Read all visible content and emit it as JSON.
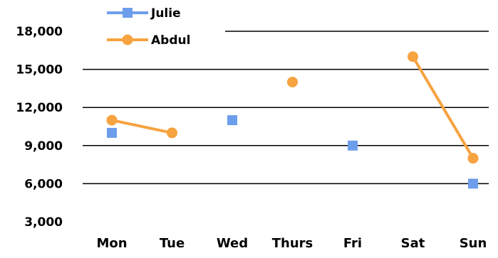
{
  "chart_data": {
    "type": "line",
    "categories": [
      "Mon",
      "Tue",
      "Wed",
      "Thurs",
      "Fri",
      "Sat",
      "Sun"
    ],
    "series": [
      {
        "name": "Julie",
        "color": "#6D9EEB",
        "marker": "square",
        "values": [
          10000,
          null,
          11000,
          null,
          9000,
          null,
          6000
        ]
      },
      {
        "name": "Abdul",
        "color": "#F6A340",
        "marker": "circle",
        "values": [
          11000,
          10000,
          null,
          14000,
          null,
          16000,
          8000
        ]
      }
    ],
    "yticks": [
      "3,000",
      "6,000",
      "9,000",
      "12,000",
      "15,000",
      "18,000"
    ],
    "ylim": [
      3000,
      18000
    ],
    "grid": true,
    "legend_position": "top-left"
  }
}
